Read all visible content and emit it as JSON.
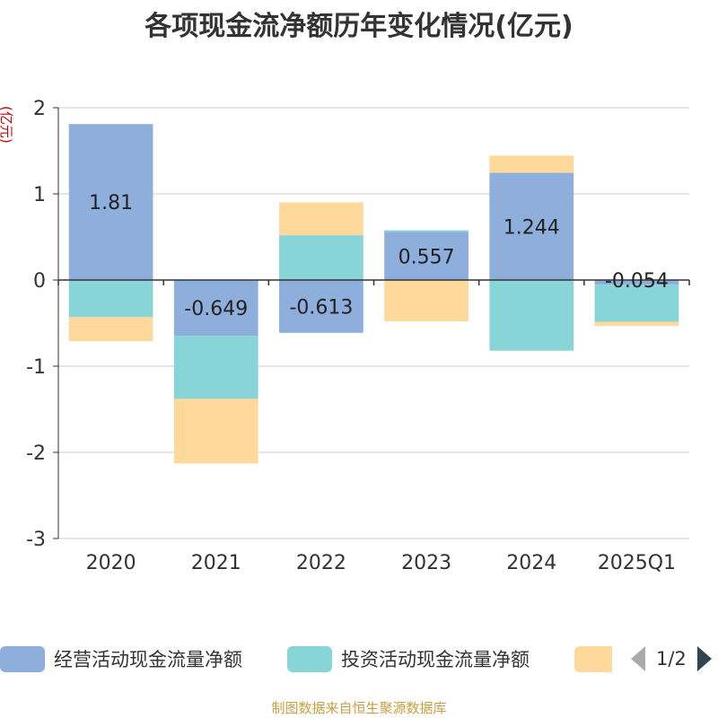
{
  "chart_data": {
    "type": "bar",
    "stacked": true,
    "title": "各项现金流净额历年变化情况(亿元)",
    "ylabel": "(亿元)",
    "xlabel": "",
    "ylim": [
      -3,
      2
    ],
    "yticks": [
      2,
      1,
      0,
      -1,
      -2,
      -3
    ],
    "categories": [
      "2020",
      "2021",
      "2022",
      "2023",
      "2024",
      "2025Q1"
    ],
    "series": [
      {
        "name": "经营活动现金流量净额",
        "color": "#8eaedb",
        "values": [
          1.81,
          -0.649,
          -0.613,
          0.557,
          1.244,
          -0.054
        ],
        "labels": [
          "1.81",
          "-0.649",
          "-0.613",
          "0.557",
          "1.244",
          "-0.054"
        ]
      },
      {
        "name": "投资活动现金流量净额",
        "color": "#88d5d8",
        "values": [
          -0.43,
          -0.73,
          0.52,
          0.02,
          -0.82,
          -0.43
        ]
      },
      {
        "name": "",
        "color": "#ffd89b",
        "values": [
          -0.28,
          -0.75,
          0.38,
          -0.48,
          0.2,
          -0.05
        ]
      }
    ],
    "legend_position": "bottom"
  },
  "legend": {
    "page": "1/2"
  },
  "footer": "制图数据来自恒生聚源数据库"
}
